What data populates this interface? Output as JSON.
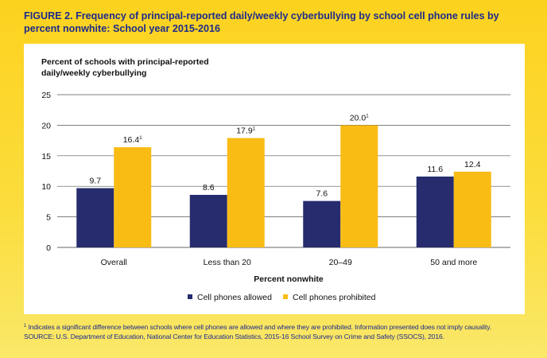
{
  "figure_title": "FIGURE 2. Frequency of principal-reported daily/weekly cyberbullying by school cell phone rules by percent nonwhite: School year 2015-2016",
  "footnote_marker": "1",
  "footnote_text": "Indicates a significant difference between schools where cell phones are allowed and where they are prohibited. Information presented does not imply causality.",
  "source_text": "SOURCE: U.S. Department of Education, National Center for Education Statistics, 2015-16 School Survey on Crime and Safety (SSOCS), 2016.",
  "colors": {
    "allowed": "#262c6e",
    "prohibited": "#f9bc15",
    "title": "#1e2c8a",
    "background": "#fcd21f"
  },
  "chart_data": {
    "type": "bar",
    "ylabel": "Percent of schools with principal-reported daily/weekly cyberbullying",
    "xlabel": "Percent nonwhite",
    "ylim": [
      0,
      25
    ],
    "yticks": [
      "0",
      "5",
      "10",
      "15",
      "20",
      "25"
    ],
    "grid": true,
    "legend_position": "bottom",
    "categories": [
      "Overall",
      "Less than 20",
      "20–49",
      "50 and more"
    ],
    "series": [
      {
        "name": "Cell phones allowed",
        "values": [
          9.7,
          8.6,
          7.6,
          11.6
        ],
        "labels": [
          "9.7",
          "8.6",
          "7.6",
          "11.6"
        ],
        "significant": [
          false,
          false,
          false,
          false
        ]
      },
      {
        "name": "Cell phones prohibited",
        "values": [
          16.4,
          17.9,
          20.0,
          12.4
        ],
        "labels": [
          "16.4",
          "17.9",
          "20.0",
          "12.4"
        ],
        "significant": [
          true,
          true,
          true,
          false
        ]
      }
    ]
  }
}
